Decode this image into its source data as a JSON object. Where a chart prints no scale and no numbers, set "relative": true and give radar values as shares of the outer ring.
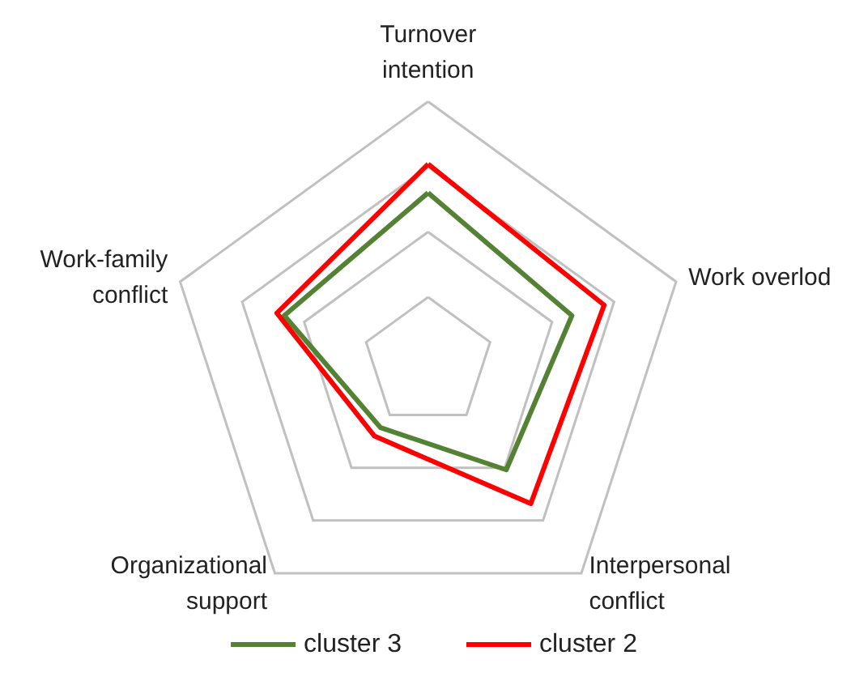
{
  "chart_data": {
    "type": "radar",
    "relative": true,
    "categories": [
      "Turnover\nintention",
      "Work overlod",
      "Interpersonal\nconflict",
      "Organizational\nsupport",
      "Work-family\nconflict"
    ],
    "series": [
      {
        "name": "cluster 3",
        "color": "#548235",
        "values": [
          0.65,
          0.58,
          0.51,
          0.31,
          0.58
        ]
      },
      {
        "name": "cluster 2",
        "color": "#ff0000",
        "values": [
          0.76,
          0.71,
          0.67,
          0.35,
          0.61
        ]
      }
    ],
    "legend": "bottom"
  }
}
